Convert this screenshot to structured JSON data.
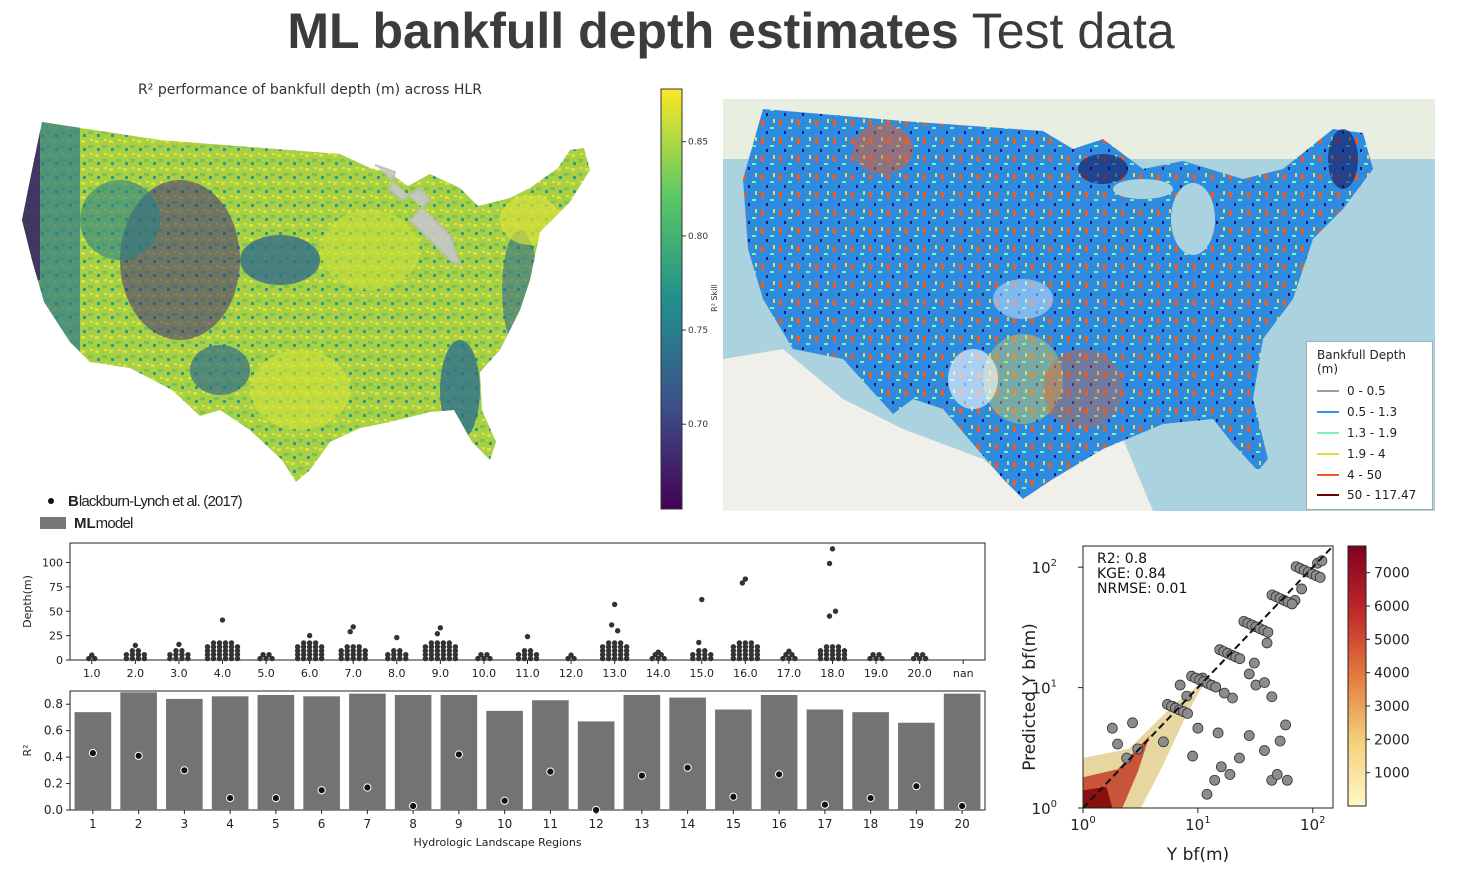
{
  "slide": {
    "title_bold": "ML bankfull depth estimates",
    "title_light": "Test data"
  },
  "map_r2": {
    "title": "R² performance of bankfull depth (m) across HLR",
    "colorbar_label": "R² Skill",
    "colorbar_ticks": [
      "0.85",
      "0.80",
      "0.75",
      "0.70"
    ],
    "colorbar_range": [
      0.655,
      0.878
    ],
    "palette": [
      "#440154",
      "#3b528b",
      "#21908d",
      "#5dc963",
      "#fde725"
    ]
  },
  "map_depth": {
    "legend_title": "Bankfull Depth (m)",
    "legend_items": [
      {
        "label": "0 - 0.5",
        "color": "#9e9e9e"
      },
      {
        "label": "0.5 - 1.3",
        "color": "#3d8fe0"
      },
      {
        "label": "1.3 - 1.9",
        "color": "#7ff2b0"
      },
      {
        "label": "1.9 - 4",
        "color": "#e7d84b"
      },
      {
        "label": "4 - 50",
        "color": "#ef5a1e"
      },
      {
        "label": "50 - 117.47",
        "color": "#6b0000"
      }
    ]
  },
  "bottom_legend": {
    "dot_label_bold": "B",
    "dot_label_rest": "lackburn-Lynch et al. (2017)",
    "bar_label_bold": "ML",
    "bar_label_rest": " model"
  },
  "chart_data": [
    {
      "type": "scatter",
      "name": "swarm",
      "ylabel": "Depth(m)",
      "ylim": [
        0,
        120
      ],
      "yticks": [
        "0",
        "25",
        "50",
        "75",
        "100"
      ],
      "categories": [
        "1.0",
        "2.0",
        "3.0",
        "4.0",
        "5.0",
        "6.0",
        "7.0",
        "8.0",
        "9.0",
        "10.0",
        "11.0",
        "12.0",
        "13.0",
        "14.0",
        "15.0",
        "16.0",
        "17.0",
        "18.0",
        "19.0",
        "20.0",
        "nan"
      ],
      "max_values": [
        5,
        15,
        16,
        41,
        8,
        25,
        34,
        23,
        33,
        8,
        24,
        5,
        57,
        8,
        62,
        83,
        9,
        114,
        6,
        8,
        null
      ],
      "bulk_values": [
        4,
        10,
        10,
        20,
        8,
        18,
        16,
        12,
        20,
        8,
        12,
        4,
        18,
        7,
        12,
        18,
        8,
        14,
        6,
        8,
        null
      ],
      "outliers": [
        [],
        [],
        [],
        [],
        [],
        [],
        [
          29
        ],
        [],
        [
          27
        ],
        [],
        [],
        [],
        [
          36,
          30
        ],
        [],
        [
          18
        ],
        [
          79
        ],
        [],
        [
          99,
          50,
          45
        ],
        [],
        [],
        []
      ]
    },
    {
      "type": "bar",
      "name": "r2",
      "xlabel": "Hydrologic Landscape Regions",
      "ylabel": "R²",
      "ylim": [
        0,
        0.9
      ],
      "yticks": [
        "0.0",
        "0.2",
        "0.4",
        "0.6",
        "0.8"
      ],
      "categories": [
        "1",
        "2",
        "3",
        "4",
        "5",
        "6",
        "7",
        "8",
        "9",
        "10",
        "11",
        "12",
        "13",
        "14",
        "15",
        "16",
        "17",
        "18",
        "19",
        "20"
      ],
      "series": [
        {
          "name": "ML model",
          "values": [
            0.74,
            0.89,
            0.84,
            0.86,
            0.87,
            0.86,
            0.88,
            0.87,
            0.87,
            0.75,
            0.83,
            0.67,
            0.87,
            0.85,
            0.76,
            0.87,
            0.76,
            0.74,
            0.66,
            0.88
          ]
        },
        {
          "name": "Blackburn-Lynch et al. (2017)",
          "values": [
            0.43,
            0.41,
            0.3,
            0.09,
            0.09,
            0.15,
            0.17,
            0.03,
            0.42,
            0.07,
            0.29,
            0.0,
            0.26,
            0.32,
            0.1,
            0.27,
            0.04,
            0.09,
            0.18,
            0.03
          ]
        }
      ]
    },
    {
      "type": "scatter",
      "name": "predicted_vs_observed",
      "xlabel": "Y bf(m)",
      "ylabel": "Predicted Y bf(m)",
      "xscale": "log",
      "yscale": "log",
      "xlim": [
        1,
        150
      ],
      "ylim": [
        1,
        150
      ],
      "stats": [
        "R2: 0.8",
        "KGE: 0.84",
        "NRMSE: 0.01"
      ],
      "colorbar_ticks": [
        "7000",
        "6000",
        "5000",
        "4000",
        "3000",
        "2000",
        "1000"
      ],
      "colorbar_range": [
        0,
        7800
      ],
      "outlier_points": [
        [
          12,
          1.3
        ],
        [
          14,
          1.7
        ],
        [
          16,
          2.2
        ],
        [
          19,
          1.9
        ],
        [
          23,
          2.6
        ],
        [
          38,
          3.0
        ],
        [
          44,
          1.7
        ],
        [
          49,
          1.9
        ],
        [
          60,
          1.7
        ],
        [
          58,
          4.9
        ],
        [
          52,
          3.6
        ],
        [
          28,
          4.0
        ],
        [
          15,
          4.2
        ],
        [
          10,
          4.6
        ],
        [
          9,
          2.7
        ],
        [
          2.4,
          2.6
        ],
        [
          3.0,
          3.1
        ],
        [
          2.0,
          3.4
        ],
        [
          1.8,
          4.6
        ],
        [
          2.7,
          5.1
        ],
        [
          20,
          8.2
        ],
        [
          32,
          10.5
        ],
        [
          38,
          11.0
        ],
        [
          44,
          8.4
        ],
        [
          31,
          16.0
        ],
        [
          40,
          23.5
        ],
        [
          70,
          53
        ],
        [
          80,
          66
        ],
        [
          110,
          108
        ],
        [
          120,
          113
        ],
        [
          28,
          13
        ],
        [
          17,
          9
        ],
        [
          11,
          12
        ],
        [
          8,
          8.5
        ],
        [
          6,
          7
        ],
        [
          7,
          10.5
        ]
      ]
    }
  ]
}
